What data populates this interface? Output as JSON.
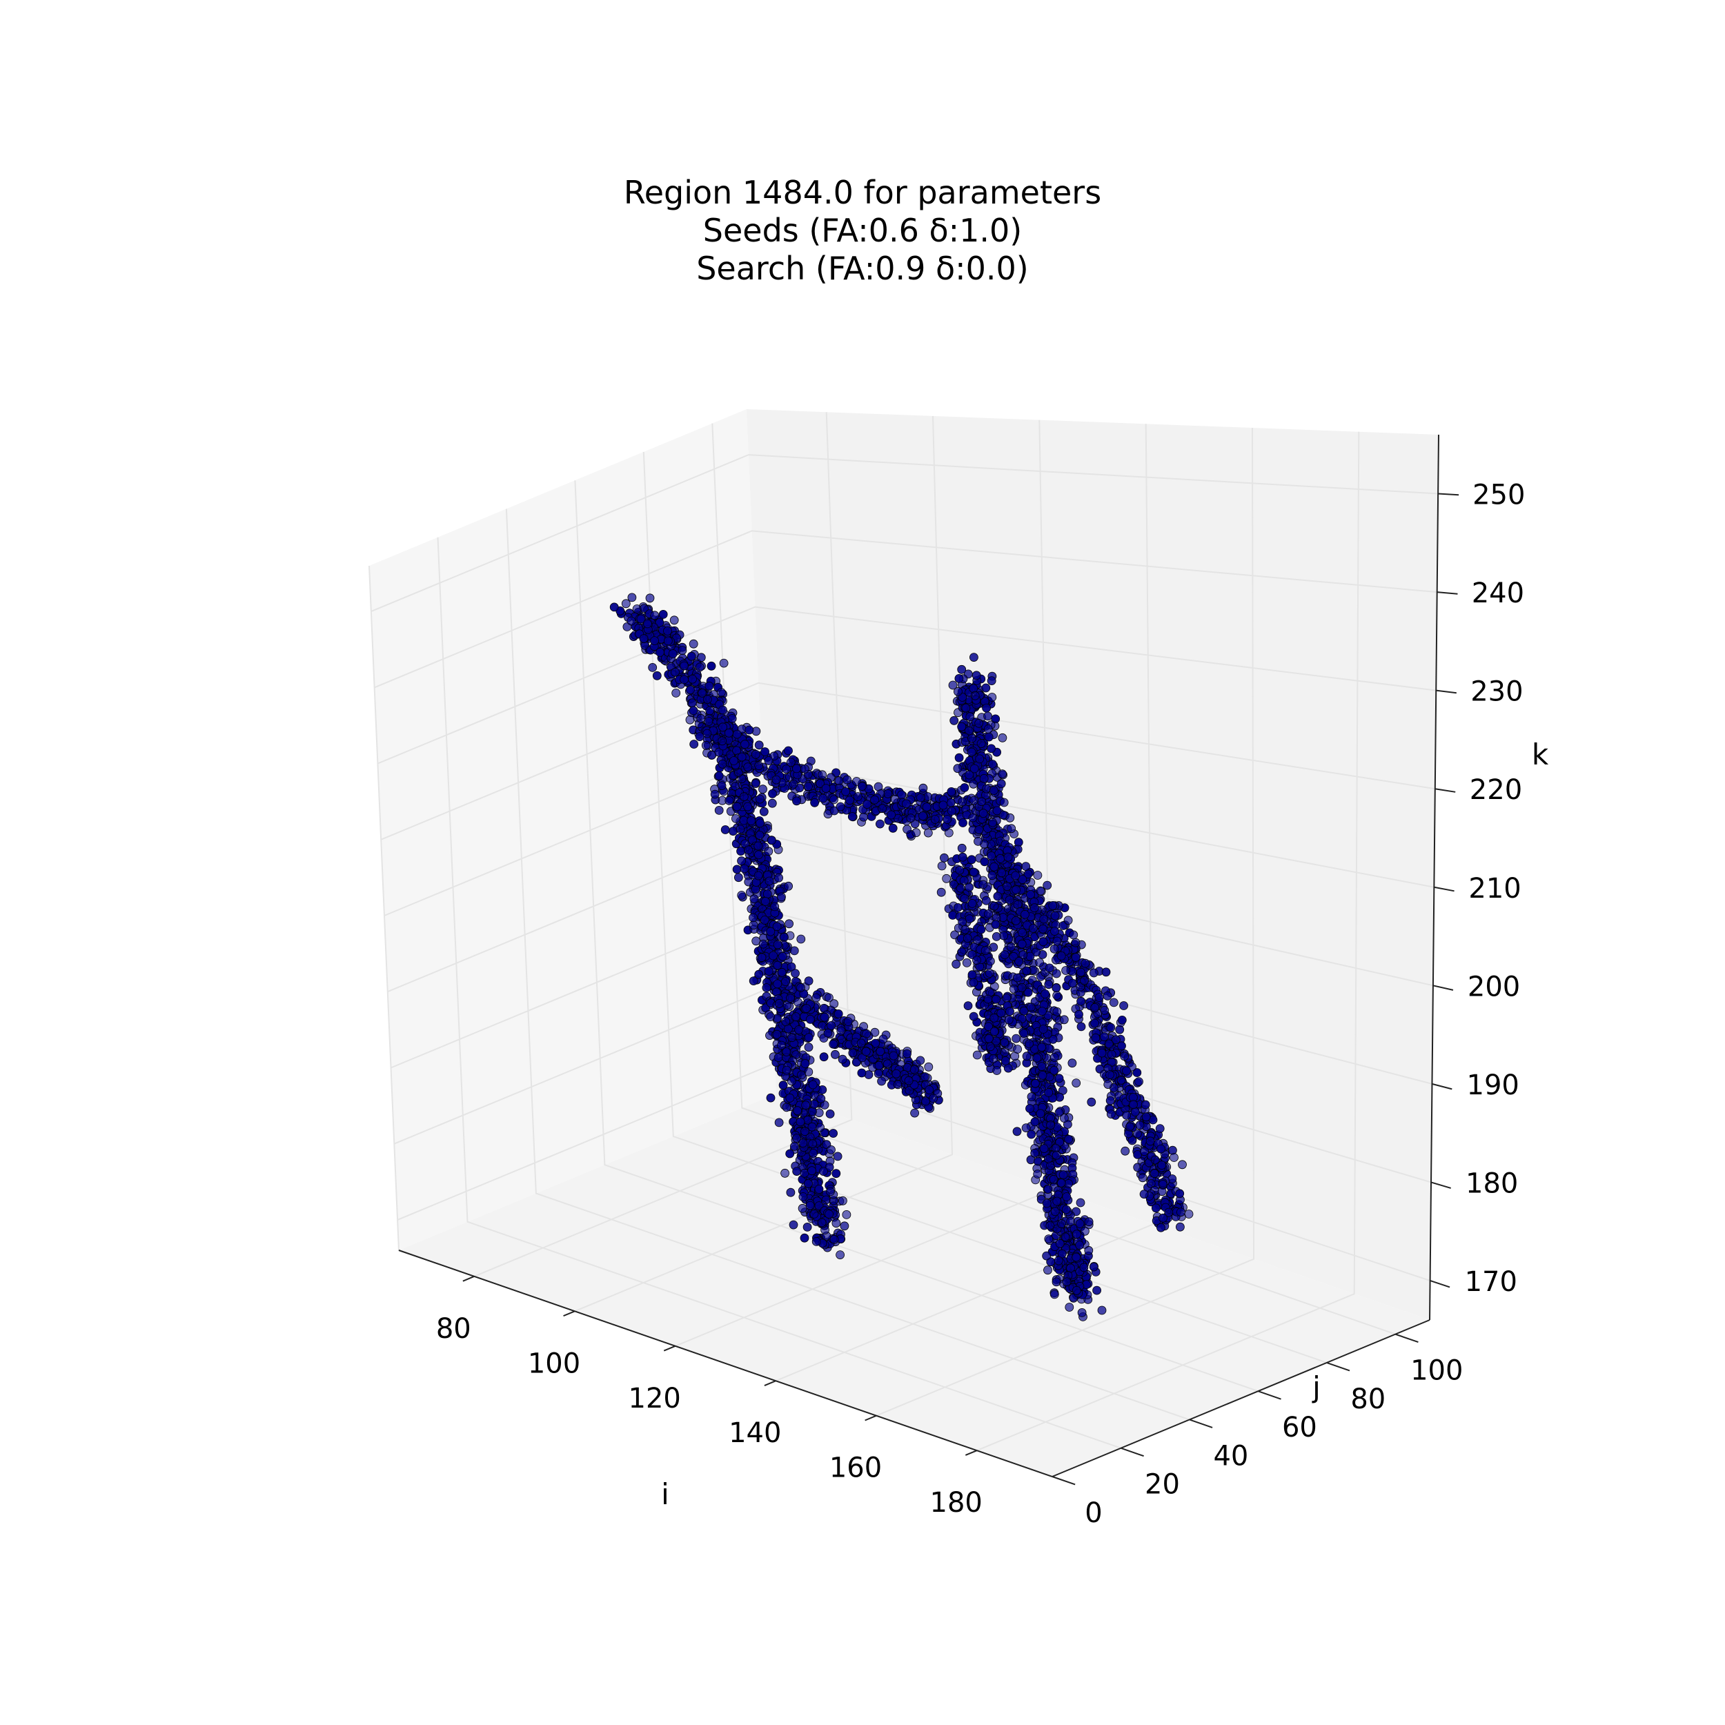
{
  "chart_data": {
    "type": "scatter",
    "projection": "3d",
    "title_lines": [
      "Region 1484.0 for parameters",
      "Seeds (FA:0.6 δ:1.0)",
      "Search (FA:0.9 δ:0.0)"
    ],
    "xlabel": "i",
    "ylabel": "j",
    "zlabel": "k",
    "xlim": [
      65,
      195
    ],
    "ylim": [
      0,
      110
    ],
    "zlim": [
      166,
      256
    ],
    "xticks": [
      80,
      100,
      120,
      140,
      160,
      180
    ],
    "yticks": [
      0,
      20,
      40,
      60,
      80,
      100
    ],
    "zticks": [
      170,
      180,
      190,
      200,
      210,
      220,
      230,
      240,
      250
    ],
    "grid": true,
    "marker_color": "#00008b",
    "marker_edge_color": "#000000",
    "pane_color": "#f2f2f2",
    "clusters": [
      {
        "name": "",
        "polyline": [
          [
            75,
            60,
            240
          ],
          [
            80,
            62,
            236
          ],
          [
            86,
            64,
            230
          ],
          [
            90,
            64,
            224
          ],
          [
            94,
            62,
            218
          ],
          [
            98,
            60,
            212
          ],
          [
            101,
            58,
            206
          ],
          [
            104,
            56,
            200
          ],
          [
            107,
            54,
            194
          ],
          [
            110,
            52,
            188
          ],
          [
            113,
            50,
            182
          ],
          [
            116,
            48,
            176
          ],
          [
            119,
            46,
            171
          ]
        ]
      },
      {
        "name": "",
        "polyline": [
          [
            86,
            64,
            226
          ],
          [
            96,
            66,
            222
          ],
          [
            108,
            68,
            220
          ],
          [
            120,
            70,
            219
          ],
          [
            130,
            72,
            220
          ]
        ]
      },
      {
        "name": "",
        "polyline": [
          [
            108,
            58,
            196
          ],
          [
            116,
            60,
            192
          ],
          [
            124,
            62,
            190
          ],
          [
            128,
            64,
            187
          ]
        ]
      },
      {
        "name": "",
        "polyline": [
          [
            128,
            78,
            234
          ],
          [
            130,
            76,
            228
          ],
          [
            133,
            74,
            222
          ],
          [
            137,
            72,
            216
          ],
          [
            141,
            70,
            210
          ],
          [
            145,
            68,
            204
          ],
          [
            148,
            66,
            198
          ],
          [
            151,
            64,
            192
          ],
          [
            153,
            62,
            186
          ],
          [
            156,
            60,
            180
          ],
          [
            159,
            58,
            175
          ],
          [
            162,
            56,
            171
          ]
        ]
      },
      {
        "name": "",
        "polyline": [
          [
            141,
            70,
            214
          ],
          [
            150,
            70,
            208
          ],
          [
            158,
            68,
            202
          ],
          [
            164,
            66,
            194
          ],
          [
            170,
            66,
            188
          ],
          [
            175,
            64,
            181
          ]
        ]
      },
      {
        "name": "",
        "polyline": [
          [
            130,
            72,
            214
          ],
          [
            133,
            70,
            206
          ],
          [
            138,
            68,
            198
          ],
          [
            140,
            66,
            192
          ]
        ]
      }
    ]
  }
}
